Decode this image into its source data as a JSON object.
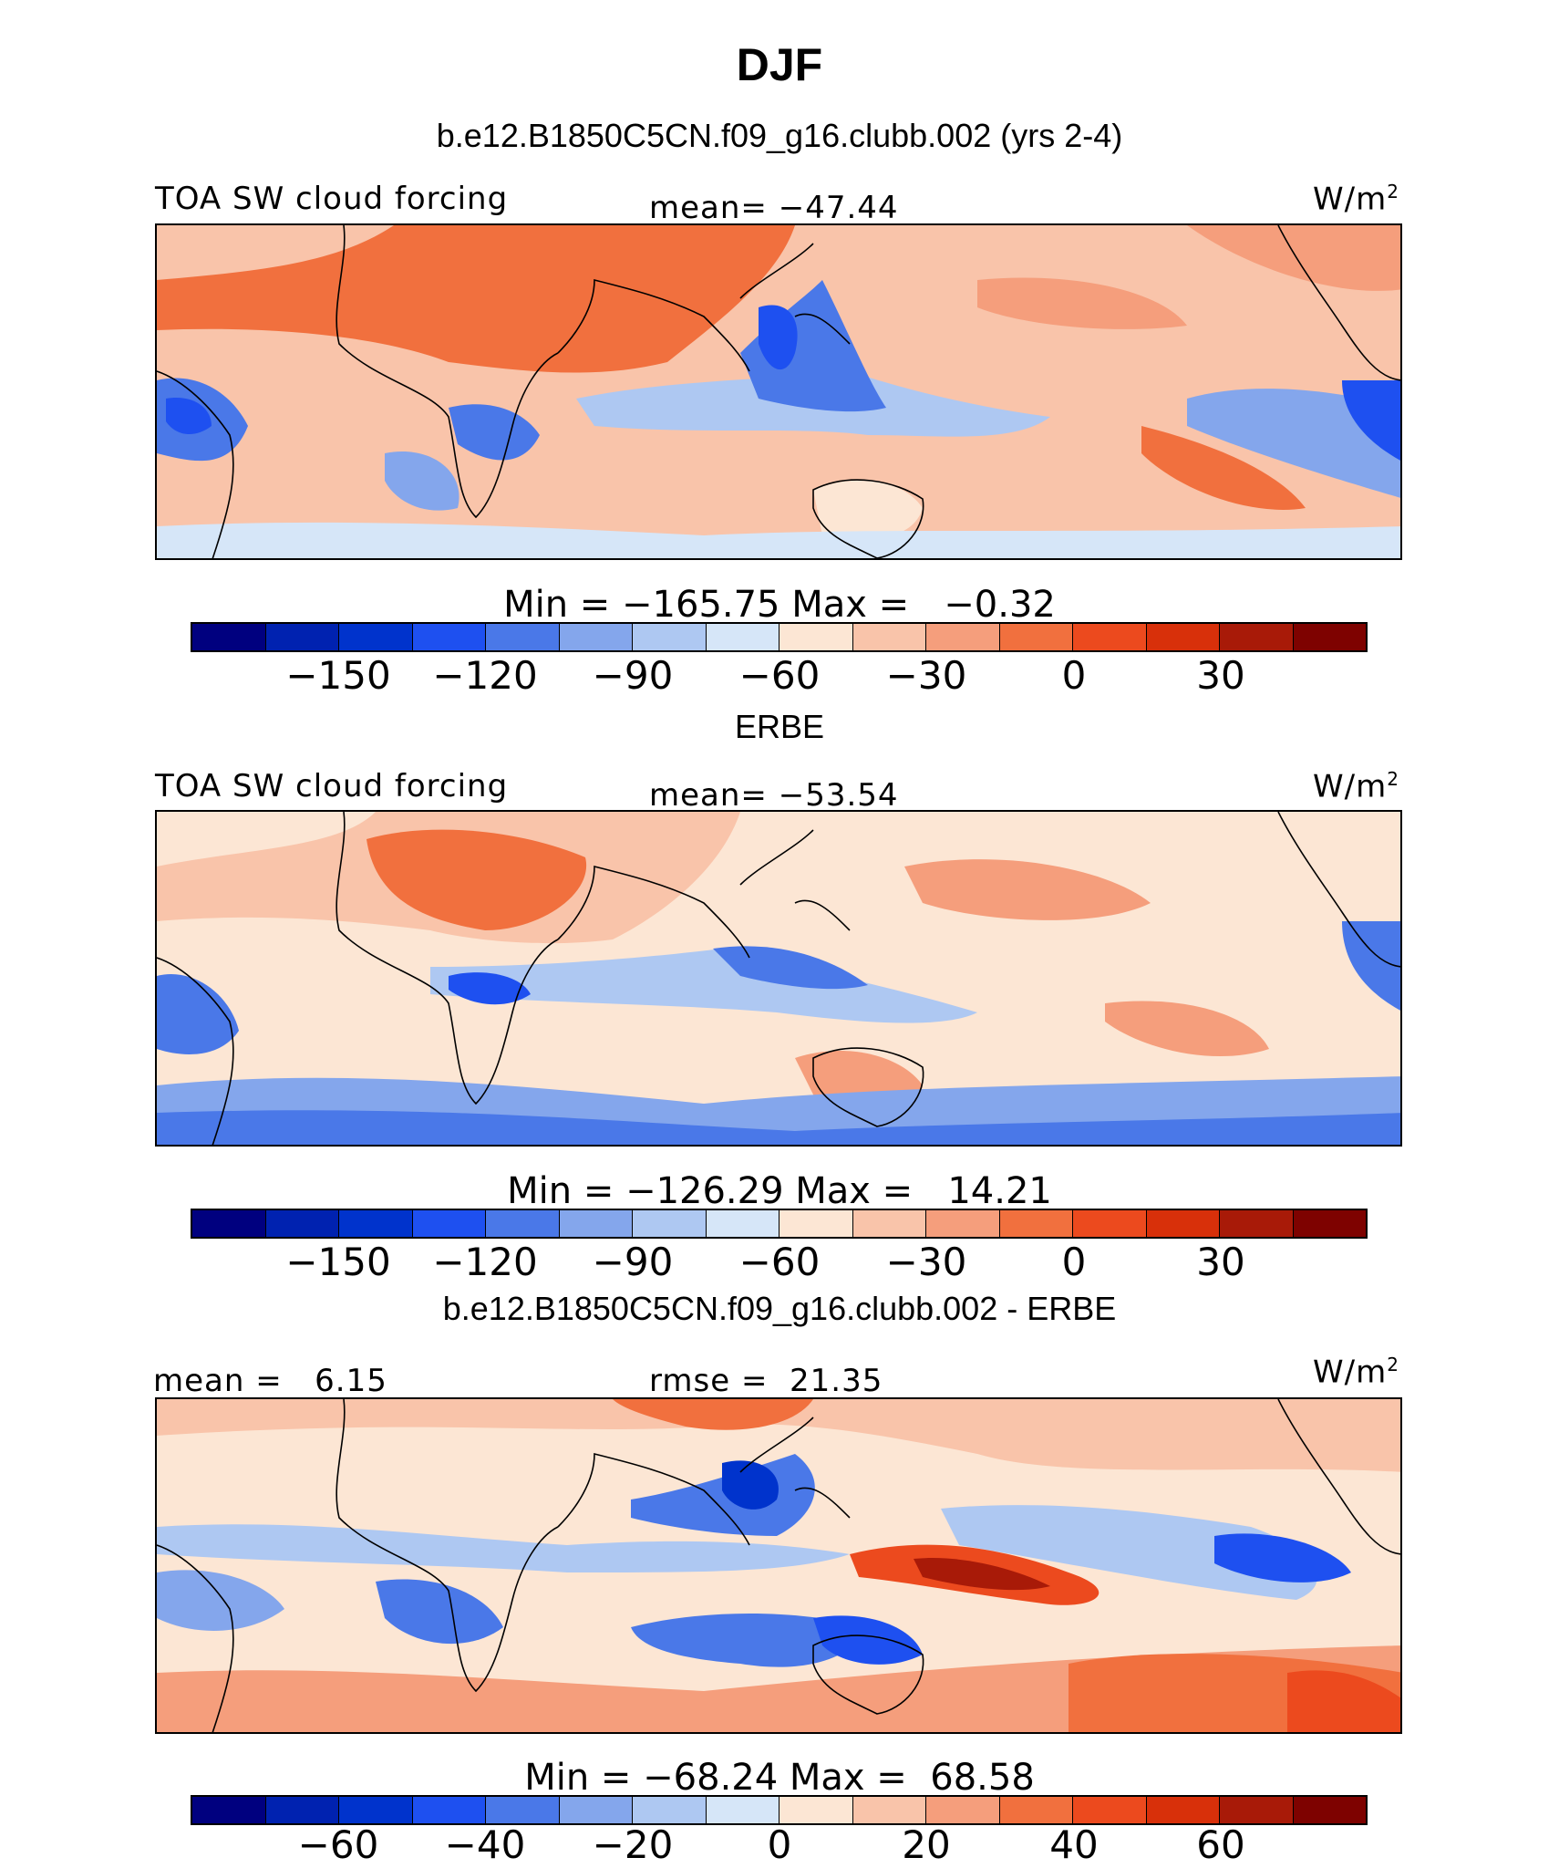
{
  "title": "DJF",
  "panels": [
    {
      "subtitle": "b.e12.B1850C5CN.f09_g16.clubb.002 (yrs 2-4)",
      "left_label": "TOA SW cloud forcing",
      "center_label": "mean= −47.44",
      "units": "W/m",
      "units_sup": "2",
      "minmax": "Min = −165.75 Max =   −0.32",
      "ticks": [
        "−150",
        "−120",
        "−90",
        "−60",
        "−30",
        "0",
        "30"
      ]
    },
    {
      "subtitle": "ERBE",
      "left_label": "TOA SW cloud forcing",
      "center_label": "mean= −53.54",
      "units": "W/m",
      "units_sup": "2",
      "minmax": "Min = −126.29 Max =   14.21",
      "ticks": [
        "−150",
        "−120",
        "−90",
        "−60",
        "−30",
        "0",
        "30"
      ]
    },
    {
      "subtitle": "b.e12.B1850C5CN.f09_g16.clubb.002 - ERBE",
      "left_label": "mean =   6.15",
      "center_label": "rmse =  21.35",
      "units": "W/m",
      "units_sup": "2",
      "minmax": "Min = −68.24 Max =  68.58",
      "ticks": [
        "−60",
        "−40",
        "−20",
        "0",
        "20",
        "40",
        "60"
      ]
    }
  ],
  "colormap": [
    "#00007f",
    "#0022b0",
    "#0033cc",
    "#1e50f0",
    "#4a78e8",
    "#84a6ec",
    "#aec8f2",
    "#d6e6f8",
    "#fce6d4",
    "#f9c4aa",
    "#f59e7c",
    "#f1703e",
    "#ec4a1e",
    "#d8300a",
    "#a81a08",
    "#7e0200"
  ]
}
